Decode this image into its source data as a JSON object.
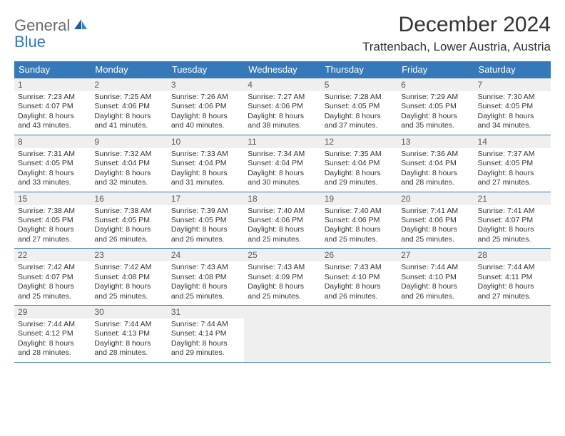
{
  "logo": {
    "line1": "General",
    "line2": "Blue"
  },
  "title": "December 2024",
  "location": "Trattenbach, Lower Austria, Austria",
  "colors": {
    "header_bg": "#3679b8",
    "header_text": "#ffffff",
    "rule": "#3679b8",
    "daynum_bg": "#efefef",
    "page_bg": "#ffffff",
    "text": "#333333",
    "logo_gray": "#6a6a6a",
    "logo_blue": "#3679b8"
  },
  "day_headers": [
    "Sunday",
    "Monday",
    "Tuesday",
    "Wednesday",
    "Thursday",
    "Friday",
    "Saturday"
  ],
  "weeks": [
    [
      {
        "d": "1",
        "sr": "7:23 AM",
        "ss": "4:07 PM",
        "dl": "8 hours and 43 minutes."
      },
      {
        "d": "2",
        "sr": "7:25 AM",
        "ss": "4:06 PM",
        "dl": "8 hours and 41 minutes."
      },
      {
        "d": "3",
        "sr": "7:26 AM",
        "ss": "4:06 PM",
        "dl": "8 hours and 40 minutes."
      },
      {
        "d": "4",
        "sr": "7:27 AM",
        "ss": "4:06 PM",
        "dl": "8 hours and 38 minutes."
      },
      {
        "d": "5",
        "sr": "7:28 AM",
        "ss": "4:05 PM",
        "dl": "8 hours and 37 minutes."
      },
      {
        "d": "6",
        "sr": "7:29 AM",
        "ss": "4:05 PM",
        "dl": "8 hours and 35 minutes."
      },
      {
        "d": "7",
        "sr": "7:30 AM",
        "ss": "4:05 PM",
        "dl": "8 hours and 34 minutes."
      }
    ],
    [
      {
        "d": "8",
        "sr": "7:31 AM",
        "ss": "4:05 PM",
        "dl": "8 hours and 33 minutes."
      },
      {
        "d": "9",
        "sr": "7:32 AM",
        "ss": "4:04 PM",
        "dl": "8 hours and 32 minutes."
      },
      {
        "d": "10",
        "sr": "7:33 AM",
        "ss": "4:04 PM",
        "dl": "8 hours and 31 minutes."
      },
      {
        "d": "11",
        "sr": "7:34 AM",
        "ss": "4:04 PM",
        "dl": "8 hours and 30 minutes."
      },
      {
        "d": "12",
        "sr": "7:35 AM",
        "ss": "4:04 PM",
        "dl": "8 hours and 29 minutes."
      },
      {
        "d": "13",
        "sr": "7:36 AM",
        "ss": "4:04 PM",
        "dl": "8 hours and 28 minutes."
      },
      {
        "d": "14",
        "sr": "7:37 AM",
        "ss": "4:05 PM",
        "dl": "8 hours and 27 minutes."
      }
    ],
    [
      {
        "d": "15",
        "sr": "7:38 AM",
        "ss": "4:05 PM",
        "dl": "8 hours and 27 minutes."
      },
      {
        "d": "16",
        "sr": "7:38 AM",
        "ss": "4:05 PM",
        "dl": "8 hours and 26 minutes."
      },
      {
        "d": "17",
        "sr": "7:39 AM",
        "ss": "4:05 PM",
        "dl": "8 hours and 26 minutes."
      },
      {
        "d": "18",
        "sr": "7:40 AM",
        "ss": "4:06 PM",
        "dl": "8 hours and 25 minutes."
      },
      {
        "d": "19",
        "sr": "7:40 AM",
        "ss": "4:06 PM",
        "dl": "8 hours and 25 minutes."
      },
      {
        "d": "20",
        "sr": "7:41 AM",
        "ss": "4:06 PM",
        "dl": "8 hours and 25 minutes."
      },
      {
        "d": "21",
        "sr": "7:41 AM",
        "ss": "4:07 PM",
        "dl": "8 hours and 25 minutes."
      }
    ],
    [
      {
        "d": "22",
        "sr": "7:42 AM",
        "ss": "4:07 PM",
        "dl": "8 hours and 25 minutes."
      },
      {
        "d": "23",
        "sr": "7:42 AM",
        "ss": "4:08 PM",
        "dl": "8 hours and 25 minutes."
      },
      {
        "d": "24",
        "sr": "7:43 AM",
        "ss": "4:08 PM",
        "dl": "8 hours and 25 minutes."
      },
      {
        "d": "25",
        "sr": "7:43 AM",
        "ss": "4:09 PM",
        "dl": "8 hours and 25 minutes."
      },
      {
        "d": "26",
        "sr": "7:43 AM",
        "ss": "4:10 PM",
        "dl": "8 hours and 26 minutes."
      },
      {
        "d": "27",
        "sr": "7:44 AM",
        "ss": "4:10 PM",
        "dl": "8 hours and 26 minutes."
      },
      {
        "d": "28",
        "sr": "7:44 AM",
        "ss": "4:11 PM",
        "dl": "8 hours and 27 minutes."
      }
    ],
    [
      {
        "d": "29",
        "sr": "7:44 AM",
        "ss": "4:12 PM",
        "dl": "8 hours and 28 minutes."
      },
      {
        "d": "30",
        "sr": "7:44 AM",
        "ss": "4:13 PM",
        "dl": "8 hours and 28 minutes."
      },
      {
        "d": "31",
        "sr": "7:44 AM",
        "ss": "4:14 PM",
        "dl": "8 hours and 29 minutes."
      },
      null,
      null,
      null,
      null
    ]
  ],
  "labels": {
    "sunrise": "Sunrise: ",
    "sunset": "Sunset: ",
    "daylight": "Daylight: "
  }
}
